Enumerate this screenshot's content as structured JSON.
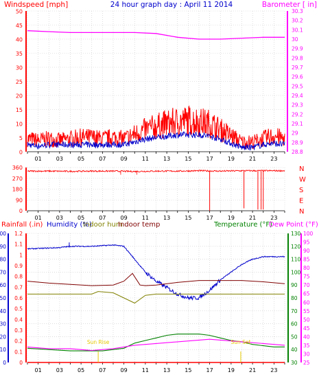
{
  "header": {
    "left": "Windspeed [mph]",
    "center": "24 hour graph day : April 11 2014",
    "right": "Barometer [ in]"
  },
  "colors": {
    "wind": "#ff0000",
    "gust": "#0000cc",
    "baro": "#ff00ff",
    "rain": "#ff0000",
    "humidity": "#0000cc",
    "indoor_hum": "#808000",
    "indoor_temp": "#800000",
    "temp": "#008000",
    "dew": "#ff00ff",
    "grid": "#c8c8c8",
    "left_axis": "#ff0000",
    "blue_axis": "#0000cc",
    "right_axis": "#ff00ff",
    "green_axis": "#008000",
    "sun": "#e6c800"
  },
  "chart_data": [
    {
      "type": "line",
      "title": "24 hour graph day : April 11 2014",
      "x_ticks": [
        "01",
        "03",
        "05",
        "07",
        "09",
        "11",
        "13",
        "15",
        "17",
        "19",
        "21",
        "23"
      ],
      "left_axis": {
        "label": "Windspeed [mph]",
        "ylim": [
          0,
          50
        ],
        "ticks": [
          0,
          5,
          10,
          15,
          20,
          25,
          30,
          35,
          40,
          45,
          50
        ]
      },
      "right_axis": {
        "label": "Barometer [ in]",
        "ylim": [
          28.8,
          30.3
        ],
        "ticks": [
          "28.8",
          "28.9",
          "29",
          "29.1",
          "29.2",
          "29.3",
          "29.4",
          "29.5",
          "29.6",
          "29.7",
          "29.8",
          "29.9",
          "30",
          "30.1",
          "30.2",
          "30.3"
        ]
      },
      "series": [
        {
          "name": "Windspeed",
          "x": [
            0,
            1,
            2,
            3,
            4,
            5,
            6,
            7,
            8,
            9,
            10,
            11,
            12,
            13,
            14,
            15,
            16,
            17,
            18,
            19,
            20,
            21,
            22,
            23,
            24
          ],
          "y": [
            4,
            3.5,
            4,
            3.5,
            4,
            4.5,
            4.5,
            4,
            4.5,
            4,
            5.5,
            7,
            8,
            9,
            9.5,
            10,
            9.5,
            9,
            7,
            5,
            3,
            3,
            4,
            5,
            4
          ]
        },
        {
          "name": "Windspeed gust",
          "x": [
            0,
            1,
            2,
            3,
            4,
            5,
            6,
            7,
            8,
            9,
            10,
            11,
            12,
            13,
            14,
            15,
            16,
            17,
            18,
            19,
            20,
            21,
            22,
            23,
            24
          ],
          "y": [
            2.5,
            2,
            2.5,
            2.5,
            2.5,
            2.5,
            2.5,
            2.5,
            2.5,
            2.5,
            3.5,
            4.5,
            5,
            5.5,
            6,
            6,
            6,
            5.5,
            4.5,
            3,
            1.5,
            1.5,
            2.5,
            3,
            2.5
          ]
        },
        {
          "name": "Barometer",
          "x": [
            0,
            2,
            4,
            6,
            8,
            10,
            12,
            14,
            16,
            18,
            20,
            22,
            24
          ],
          "y": [
            30.09,
            30.08,
            30.07,
            30.07,
            30.07,
            30.07,
            30.06,
            30.02,
            30,
            30,
            30.01,
            30.02,
            30.02
          ]
        }
      ]
    },
    {
      "type": "scatter",
      "right_labels": [
        "N",
        "W",
        "S",
        "E",
        "N"
      ],
      "left_axis": {
        "ylim": [
          0,
          360
        ],
        "ticks": [
          0,
          90,
          180,
          270,
          360
        ]
      },
      "series": [
        {
          "name": "Wind direction",
          "x": [
            0,
            2,
            4,
            6,
            8,
            10,
            12,
            14,
            16,
            18,
            20,
            22,
            24
          ],
          "y": [
            330,
            330,
            328,
            330,
            330,
            327,
            330,
            330,
            333,
            330,
            333,
            333,
            333
          ]
        },
        {
          "name": "Wind direction drops",
          "x": [
            17,
            20.2,
            21.5,
            21.8,
            22
          ],
          "y": [
            0,
            20,
            10,
            10,
            10
          ]
        }
      ]
    },
    {
      "type": "line",
      "header_labels": [
        "Rainfall (.in)",
        "Humidity (%)",
        "Indoor hum",
        "Indoor temp",
        "Temperature (°F)",
        "Dew Point (°F)"
      ],
      "axes": {
        "rain_ticks": [
          "0",
          "0.1",
          "0.2",
          "0.3",
          "0.4",
          "0.5",
          "0.6",
          "0.7",
          "0.8",
          "0.9",
          "1",
          "1.1",
          "1.2"
        ],
        "humidity_ticks": [
          0,
          10,
          20,
          30,
          40,
          50,
          60,
          70,
          80,
          90,
          100
        ],
        "temp_ticks": [
          30,
          40,
          50,
          60,
          70,
          80,
          90,
          100,
          110,
          120,
          130
        ],
        "dew_ticks": [
          25,
          30,
          35,
          40,
          45,
          50,
          55,
          60,
          65,
          70,
          75,
          80,
          85,
          90,
          95,
          100
        ]
      },
      "sun_labels": [
        "Sun Rise",
        "Sun Set"
      ],
      "sun_times": [
        6.6,
        19.9
      ],
      "series": [
        {
          "name": "Humidity",
          "x": [
            0,
            3,
            4,
            6,
            8,
            9,
            10,
            11,
            12,
            13,
            14,
            15,
            16,
            17,
            18,
            19,
            20,
            21,
            22,
            24
          ],
          "y": [
            88,
            89,
            90,
            90,
            91,
            90,
            80,
            70,
            63,
            58,
            53,
            50,
            50,
            56,
            64,
            70,
            76,
            80,
            82,
            82
          ]
        },
        {
          "name": "Indoor temp",
          "x": [
            0,
            2,
            4,
            6,
            8,
            9,
            9.8,
            10.5,
            11,
            12,
            14,
            16,
            18,
            20,
            22,
            24
          ],
          "y": [
            93,
            91.5,
            90.5,
            89.5,
            90,
            93,
            99,
            90,
            89.5,
            90,
            92,
            93.5,
            93.5,
            93.5,
            92.5,
            91
          ]
        },
        {
          "name": "Indoor hum",
          "x": [
            0,
            6,
            6.6,
            8,
            9,
            10,
            11,
            12,
            14,
            16,
            18,
            20,
            22,
            24
          ],
          "y": [
            53,
            53,
            55,
            54,
            50,
            46,
            52,
            53,
            53,
            53,
            53,
            53,
            53,
            53
          ]
        },
        {
          "name": "Temperature",
          "x": [
            0,
            2,
            4,
            6,
            7,
            8,
            9,
            10,
            11,
            12,
            13,
            14,
            15,
            16,
            17,
            18,
            19,
            20,
            21,
            22,
            23,
            24
          ],
          "y": [
            41,
            40,
            39,
            39,
            39,
            40,
            41,
            45,
            47,
            49,
            51,
            52,
            52,
            52,
            51,
            49,
            47,
            46,
            44,
            43,
            42,
            42
          ]
        },
        {
          "name": "Dew Point",
          "x": [
            0,
            2,
            4,
            6,
            8,
            10,
            12,
            14,
            16,
            17,
            18,
            20,
            22,
            24
          ],
          "y": [
            34,
            33,
            33,
            32,
            33,
            35,
            36,
            37,
            38,
            38.5,
            38,
            37,
            36,
            35
          ]
        },
        {
          "name": "Rainfall",
          "x": [
            0,
            24
          ],
          "y": [
            0,
            0
          ]
        }
      ]
    }
  ]
}
